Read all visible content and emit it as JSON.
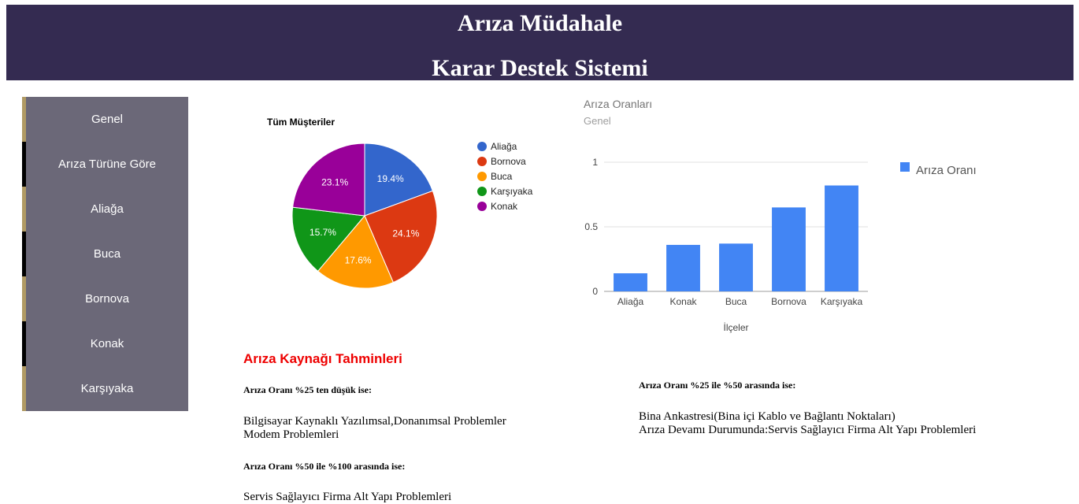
{
  "header": {
    "title_line1": "Arıza Müdahale",
    "title_line2": "Karar Destek Sistemi"
  },
  "sidebar": {
    "items": [
      {
        "label": "Genel"
      },
      {
        "label": "Arıza Türüne Göre"
      },
      {
        "label": "Aliağa"
      },
      {
        "label": "Buca"
      },
      {
        "label": "Bornova"
      },
      {
        "label": "Konak"
      },
      {
        "label": "Karşıyaka"
      }
    ]
  },
  "chart_data": [
    {
      "type": "pie",
      "title": "Tüm Müşteriler",
      "categories": [
        "Aliağa",
        "Bornova",
        "Buca",
        "Karşıyaka",
        "Konak"
      ],
      "values": [
        19.4,
        24.1,
        17.6,
        15.7,
        23.1
      ],
      "labels": [
        "19.4%",
        "24.1%",
        "17.6%",
        "15.7%",
        "23.1%"
      ],
      "colors": [
        "#3366cc",
        "#dc3912",
        "#ff9900",
        "#109618",
        "#990099"
      ],
      "legend": "right"
    },
    {
      "type": "bar",
      "title": "Arıza Oranları",
      "subtitle": "Genel",
      "categories": [
        "Aliağa",
        "Konak",
        "Buca",
        "Bornova",
        "Karşıyaka"
      ],
      "series": [
        {
          "name": "Arıza Oranı",
          "values": [
            0.14,
            0.36,
            0.37,
            0.65,
            0.82
          ],
          "color": "#4285f4"
        }
      ],
      "xlabel": "İlçeler",
      "ylabel": "",
      "ylim": [
        0,
        1
      ],
      "yticks": [
        {
          "v": 0,
          "label": "0"
        },
        {
          "v": 0.5,
          "label": "0.5"
        },
        {
          "v": 1,
          "label": "1"
        }
      ],
      "grid": true,
      "legend": "right"
    }
  ],
  "predictions": {
    "title": "Arıza Kaynağı Tahminleri",
    "low_label": "Arıza Oranı %25 ten düşük ise:",
    "low_line1": "Bilgisayar Kaynaklı Yazılımsal,Donanımsal Problemler",
    "low_line2": "Modem Problemleri",
    "mid_label": "Arıza Oranı %25 ile %50 arasında ise:",
    "mid_line1": "Bina Ankastresi(Bina içi Kablo ve Bağlantı Noktaları)",
    "mid_line2": "Arıza Devamı Durumunda:Servis Sağlayıcı Firma Alt Yapı Problemleri",
    "high_label": "Arıza Oranı %50 ile %100 arasında ise:",
    "high_line1": "Servis Sağlayıcı Firma Alt Yapı Problemleri"
  }
}
